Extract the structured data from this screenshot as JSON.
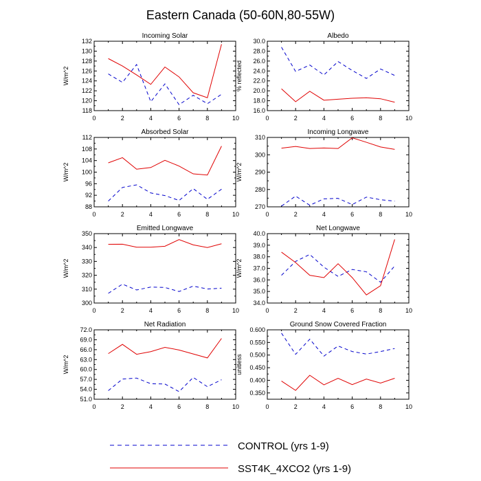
{
  "figure_title": "Eastern Canada (50-60N,80-55W)",
  "legend": [
    {
      "label": "CONTROL (yrs 1-9)",
      "series_key": "CONTROL (yrs 1-9)",
      "color": "#0000cc",
      "dash": "dashed"
    },
    {
      "label": "SST4K_4XCO2 (yrs 1-9)",
      "series_key": "SST4K_4XCO2 (yrs 1-9)",
      "color": "#e00000",
      "dash": "solid"
    }
  ],
  "chart_data": [
    {
      "type": "line",
      "title": "Incoming Solar",
      "ylabel": "W/m^2",
      "xlabel": "",
      "xlim": [
        0,
        10
      ],
      "ylim": [
        118,
        132
      ],
      "xticks": [
        "0",
        "2",
        "4",
        "6",
        "8",
        "10"
      ],
      "yticks": [
        "118",
        "120",
        "122",
        "124",
        "126",
        "128",
        "130",
        "132"
      ],
      "x": [
        1,
        2,
        3,
        4,
        5,
        6,
        7,
        8,
        9
      ],
      "series": [
        {
          "name": "CONTROL (yrs 1-9)",
          "values": [
            125.4,
            123.7,
            127.3,
            119.8,
            123.4,
            119.2,
            121.1,
            119.4,
            121.3
          ]
        },
        {
          "name": "SST4K_4XCO2 (yrs 1-9)",
          "values": [
            128.5,
            127.0,
            125.2,
            123.3,
            126.8,
            124.8,
            121.6,
            120.6,
            131.4
          ]
        }
      ]
    },
    {
      "type": "line",
      "title": "Albedo",
      "ylabel": "% reflected",
      "xlabel": "",
      "xlim": [
        0,
        10
      ],
      "ylim": [
        16,
        30
      ],
      "xticks": [
        "0",
        "2",
        "4",
        "6",
        "8",
        "10"
      ],
      "yticks": [
        "16.0",
        "18.0",
        "20.0",
        "22.0",
        "24.0",
        "26.0",
        "28.0",
        "30.0"
      ],
      "x": [
        1,
        2,
        3,
        4,
        5,
        6,
        7,
        8,
        9
      ],
      "series": [
        {
          "name": "CONTROL (yrs 1-9)",
          "values": [
            28.8,
            23.9,
            25.2,
            23.2,
            25.9,
            24.1,
            22.5,
            24.4,
            23.1
          ]
        },
        {
          "name": "SST4K_4XCO2 (yrs 1-9)",
          "values": [
            20.4,
            17.8,
            19.9,
            18.1,
            18.3,
            18.5,
            18.6,
            18.4,
            17.7
          ]
        }
      ]
    },
    {
      "type": "line",
      "title": "Absorbed Solar",
      "ylabel": "W/m^2",
      "xlabel": "",
      "xlim": [
        0,
        10
      ],
      "ylim": [
        88,
        112
      ],
      "xticks": [
        "0",
        "2",
        "4",
        "6",
        "8",
        "10"
      ],
      "yticks": [
        "88",
        "92",
        "96",
        "100",
        "104",
        "108",
        "112"
      ],
      "x": [
        1,
        2,
        3,
        4,
        5,
        6,
        7,
        8,
        9
      ],
      "series": [
        {
          "name": "CONTROL (yrs 1-9)",
          "values": [
            90.0,
            94.7,
            95.6,
            92.8,
            91.9,
            90.2,
            94.3,
            90.6,
            94.1
          ]
        },
        {
          "name": "SST4K_4XCO2 (yrs 1-9)",
          "values": [
            103.2,
            105.0,
            101.0,
            101.6,
            104.1,
            102.1,
            99.4,
            99.0,
            109.0
          ]
        }
      ]
    },
    {
      "type": "line",
      "title": "Incoming Longwave",
      "ylabel": "W/m^2",
      "xlabel": "",
      "xlim": [
        0,
        10
      ],
      "ylim": [
        270,
        310
      ],
      "xticks": [
        "0",
        "2",
        "4",
        "6",
        "8",
        "10"
      ],
      "yticks": [
        "270",
        "280",
        "290",
        "300",
        "310"
      ],
      "x": [
        1,
        2,
        3,
        4,
        5,
        6,
        7,
        8,
        9
      ],
      "series": [
        {
          "name": "CONTROL (yrs 1-9)",
          "values": [
            270.4,
            276.2,
            270.9,
            274.6,
            274.9,
            271.3,
            275.6,
            274.1,
            273.3
          ]
        },
        {
          "name": "SST4K_4XCO2 (yrs 1-9)",
          "values": [
            303.8,
            304.8,
            303.6,
            303.9,
            303.6,
            309.8,
            307.2,
            304.5,
            303.1
          ]
        }
      ]
    },
    {
      "type": "line",
      "title": "Emitted Longwave",
      "ylabel": "W/m^2",
      "xlabel": "",
      "xlim": [
        0,
        10
      ],
      "ylim": [
        300,
        350
      ],
      "xticks": [
        "0",
        "2",
        "4",
        "6",
        "8",
        "10"
      ],
      "yticks": [
        "300",
        "310",
        "320",
        "330",
        "340",
        "350"
      ],
      "x": [
        1,
        2,
        3,
        4,
        5,
        6,
        7,
        8,
        9
      ],
      "series": [
        {
          "name": "CONTROL (yrs 1-9)",
          "values": [
            307.0,
            313.6,
            309.4,
            311.5,
            311.2,
            308.3,
            312.2,
            310.1,
            310.7
          ]
        },
        {
          "name": "SST4K_4XCO2 (yrs 1-9)",
          "values": [
            342.3,
            342.4,
            340.2,
            340.2,
            340.9,
            345.7,
            341.9,
            340.0,
            342.7
          ]
        }
      ]
    },
    {
      "type": "line",
      "title": "Net Longwave",
      "ylabel": "W/m^2",
      "xlabel": "",
      "xlim": [
        0,
        10
      ],
      "ylim": [
        34,
        40
      ],
      "xticks": [
        "0",
        "2",
        "4",
        "6",
        "8",
        "10"
      ],
      "yticks": [
        "34.0",
        "35.0",
        "36.0",
        "37.0",
        "38.0",
        "39.0",
        "40.0"
      ],
      "x": [
        1,
        2,
        3,
        4,
        5,
        6,
        7,
        8,
        9
      ],
      "series": [
        {
          "name": "CONTROL (yrs 1-9)",
          "values": [
            36.4,
            37.6,
            38.2,
            37.1,
            36.3,
            36.9,
            36.7,
            35.8,
            37.2
          ]
        },
        {
          "name": "SST4K_4XCO2 (yrs 1-9)",
          "values": [
            38.4,
            37.5,
            36.4,
            36.2,
            37.4,
            36.2,
            34.7,
            35.5,
            39.5
          ]
        }
      ]
    },
    {
      "type": "line",
      "title": "Net Radiation",
      "ylabel": "W/m^2",
      "xlabel": "",
      "xlim": [
        0,
        10
      ],
      "ylim": [
        51,
        72
      ],
      "xticks": [
        "0",
        "2",
        "4",
        "6",
        "8",
        "10"
      ],
      "yticks": [
        "51.0",
        "54.0",
        "57.0",
        "60.0",
        "63.0",
        "66.0",
        "69.0",
        "72.0"
      ],
      "x": [
        1,
        2,
        3,
        4,
        5,
        6,
        7,
        8,
        9
      ],
      "series": [
        {
          "name": "CONTROL (yrs 1-9)",
          "values": [
            53.6,
            57.1,
            57.4,
            55.7,
            55.6,
            53.3,
            57.6,
            54.8,
            56.9
          ]
        },
        {
          "name": "SST4K_4XCO2 (yrs 1-9)",
          "values": [
            64.8,
            67.6,
            64.6,
            65.4,
            66.7,
            65.9,
            64.7,
            63.5,
            69.4
          ]
        }
      ]
    },
    {
      "type": "line",
      "title": "Ground Snow Covered Fraction",
      "ylabel": "unitless",
      "xlabel": "",
      "xlim": [
        0,
        10
      ],
      "ylim": [
        0.325,
        0.6
      ],
      "xticks": [
        "0",
        "2",
        "4",
        "6",
        "8",
        "10"
      ],
      "yticks": [
        "0.350",
        "0.400",
        "0.450",
        "0.500",
        "0.550",
        "0.600"
      ],
      "x": [
        1,
        2,
        3,
        4,
        5,
        6,
        7,
        8,
        9
      ],
      "series": [
        {
          "name": "CONTROL (yrs 1-9)",
          "values": [
            0.587,
            0.503,
            0.563,
            0.496,
            0.536,
            0.514,
            0.504,
            0.514,
            0.526
          ]
        },
        {
          "name": "SST4K_4XCO2 (yrs 1-9)",
          "values": [
            0.397,
            0.36,
            0.42,
            0.382,
            0.408,
            0.383,
            0.405,
            0.389,
            0.408
          ]
        }
      ]
    }
  ]
}
